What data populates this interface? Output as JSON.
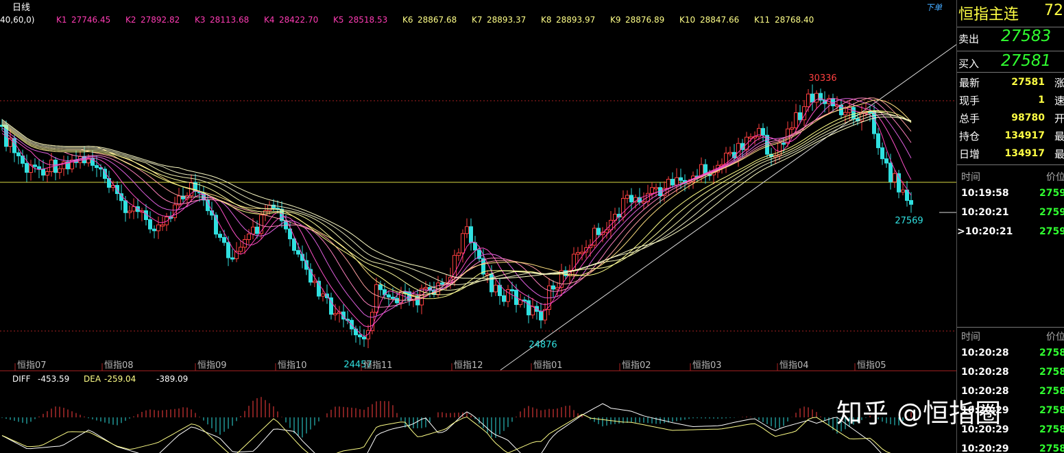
{
  "toolbar": {
    "period": "日线",
    "params": "40,60,0)",
    "order": "下单"
  },
  "indicators": [
    {
      "name": "K1",
      "value": "27746.45"
    },
    {
      "name": "K2",
      "value": "27892.82"
    },
    {
      "name": "K3",
      "value": "28113.68"
    },
    {
      "name": "K4",
      "value": "28422.70"
    },
    {
      "name": "K5",
      "value": "28518.53"
    },
    {
      "name": "K6",
      "value": "28867.68"
    },
    {
      "name": "K7",
      "value": "28893.37"
    },
    {
      "name": "K8",
      "value": "28893.97"
    },
    {
      "name": "K9",
      "value": "28876.89"
    },
    {
      "name": "K10",
      "value": "28847.66"
    },
    {
      "name": "K11",
      "value": "28768.40"
    }
  ],
  "chart": {
    "labels": {
      "high": "30336",
      "last": "27569",
      "low1": "24876",
      "low2": "24457"
    },
    "months": [
      "恒指07",
      "恒指08",
      "恒指09",
      "恒指10",
      "恒指11",
      "恒指12",
      "恒指01",
      "恒指02",
      "恒指03",
      "恒指04",
      "恒指05"
    ]
  },
  "macd": {
    "diff_label": "DIFF",
    "diff": "-453.59",
    "dea_label": "DEA",
    "dea": "-259.04",
    "macd": "-389.09"
  },
  "watermark": "知乎 @恒指圈",
  "quote": {
    "title": "恒指主连",
    "code": "72",
    "sell_label": "卖出",
    "sell": "27583",
    "buy_label": "买入",
    "buy": "27581",
    "rows": [
      {
        "label": "最新",
        "value": "27581",
        "side": "涨"
      },
      {
        "label": "现手",
        "value": "1",
        "side": "速"
      },
      {
        "label": "总手",
        "value": "98780",
        "side": "开"
      },
      {
        "label": "持仓",
        "value": "134917",
        "side": "最"
      },
      {
        "label": "日增",
        "value": "134917",
        "side": "最"
      }
    ]
  },
  "ticks1": {
    "time": "时间",
    "price": "价位",
    "rows": [
      {
        "time": "10:19:58",
        "price": "2759"
      },
      {
        "time": "10:20:21",
        "price": "2759"
      },
      {
        "time": ">10:20:21",
        "price": "2759"
      }
    ]
  },
  "ticks2": {
    "time": "时间",
    "price": "价位",
    "rows": [
      {
        "time": "10:20:28",
        "price": "2758"
      },
      {
        "time": "10:20:28",
        "price": "2758"
      },
      {
        "time": "10:20:28",
        "price": "2758"
      },
      {
        "time": "10:20:29",
        "price": "2758"
      },
      {
        "time": "10:20:29",
        "price": "2758"
      },
      {
        "time": "10:20:29",
        "price": "2758"
      }
    ]
  }
}
